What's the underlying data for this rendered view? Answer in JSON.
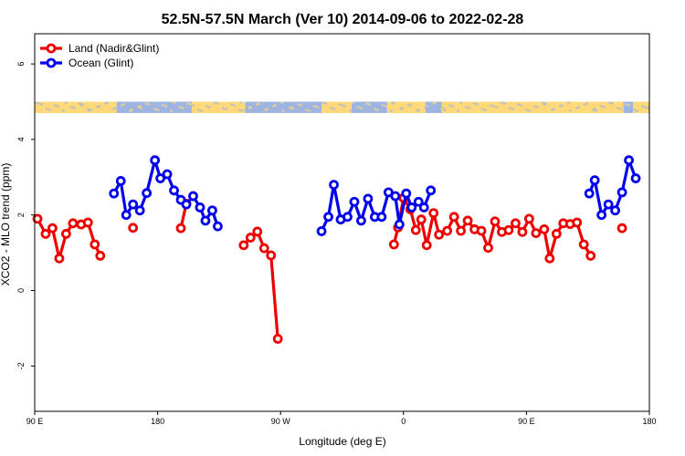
{
  "chart_data": {
    "type": "line",
    "title": "52.5N-57.5N March (Ver 10)   2014-09-06 to 2022-02-28",
    "xlabel": "Longitude (deg E)",
    "ylabel": "XCO2 - MLO trend (ppm)",
    "xlim": [
      90,
      540
    ],
    "ylim": [
      -3.2,
      6.8
    ],
    "x_ticks": [
      {
        "value": 90,
        "label": "90 E"
      },
      {
        "value": 180,
        "label": "180"
      },
      {
        "value": 270,
        "label": "90 W"
      },
      {
        "value": 360,
        "label": "0"
      },
      {
        "value": 450,
        "label": "90 E"
      },
      {
        "value": 540,
        "label": "180"
      }
    ],
    "y_ticks": [
      {
        "value": -2,
        "label": "-2"
      },
      {
        "value": 0,
        "label": "0"
      },
      {
        "value": 2,
        "label": "2"
      },
      {
        "value": 4,
        "label": "4"
      },
      {
        "value": 6,
        "label": "6"
      }
    ],
    "land_mask_band": {
      "y_top": 5.0,
      "y_bottom": 4.7,
      "land_color": "#ffd979",
      "ocean_color": "#9db5e0"
    },
    "legend_position": "top-left",
    "series": [
      {
        "name": "Land (Nadir&Glint)",
        "color": "#ee0000",
        "segments": [
          [
            [
              92,
              1.9
            ],
            [
              98,
              1.5
            ],
            [
              103,
              1.65
            ],
            [
              108,
              0.85
            ],
            [
              113,
              1.5
            ],
            [
              118,
              1.78
            ],
            [
              124,
              1.75
            ],
            [
              129,
              1.8
            ],
            [
              134,
              1.22
            ],
            [
              138,
              0.92
            ]
          ],
          [
            [
              162,
              1.66
            ]
          ],
          [
            [
              197,
              1.65
            ],
            [
              201,
              2.3
            ]
          ],
          [
            [
              243,
              1.2
            ],
            [
              248,
              1.4
            ],
            [
              253,
              1.56
            ],
            [
              258,
              1.12
            ],
            [
              263,
              0.93
            ],
            [
              268,
              -1.28
            ]
          ],
          [
            [
              353,
              1.22
            ],
            [
              356,
              1.67
            ],
            [
              360,
              2.45
            ],
            [
              365,
              2.15
            ],
            [
              369,
              1.6
            ],
            [
              373,
              1.88
            ],
            [
              377,
              1.2
            ],
            [
              382,
              2.05
            ],
            [
              386,
              1.48
            ],
            [
              392,
              1.58
            ],
            [
              397,
              1.95
            ],
            [
              402,
              1.58
            ],
            [
              407,
              1.85
            ],
            [
              412,
              1.62
            ],
            [
              417,
              1.58
            ],
            [
              422,
              1.13
            ],
            [
              427,
              1.83
            ],
            [
              432,
              1.55
            ],
            [
              437,
              1.6
            ],
            [
              442,
              1.78
            ],
            [
              447,
              1.55
            ],
            [
              452,
              1.9
            ],
            [
              457,
              1.52
            ],
            [
              463,
              1.62
            ],
            [
              467,
              0.85
            ],
            [
              472,
              1.5
            ],
            [
              477,
              1.78
            ],
            [
              482,
              1.76
            ],
            [
              487,
              1.8
            ],
            [
              492,
              1.22
            ],
            [
              497,
              0.92
            ]
          ],
          [
            [
              520,
              1.65
            ]
          ]
        ]
      },
      {
        "name": "Ocean (Glint)",
        "color": "#0000ee",
        "segments": [
          [
            [
              148,
              2.57
            ],
            [
              153,
              2.9
            ],
            [
              157,
              2.0
            ],
            [
              162,
              2.28
            ],
            [
              167,
              2.12
            ],
            [
              172,
              2.58
            ],
            [
              178,
              3.45
            ],
            [
              182,
              2.97
            ],
            [
              187,
              3.08
            ],
            [
              192,
              2.65
            ],
            [
              197,
              2.4
            ],
            [
              201,
              2.28
            ],
            [
              206,
              2.5
            ],
            [
              211,
              2.2
            ],
            [
              215,
              1.85
            ],
            [
              220,
              2.12
            ],
            [
              224,
              1.7
            ]
          ],
          [
            [
              300,
              1.57
            ],
            [
              305,
              1.95
            ],
            [
              309,
              2.8
            ],
            [
              314,
              1.88
            ],
            [
              319,
              1.95
            ],
            [
              324,
              2.35
            ],
            [
              329,
              1.85
            ],
            [
              334,
              2.43
            ],
            [
              339,
              1.95
            ],
            [
              344,
              1.95
            ],
            [
              349,
              2.6
            ],
            [
              354,
              2.5
            ],
            [
              357,
              1.75
            ],
            [
              362,
              2.57
            ],
            [
              366,
              2.2
            ],
            [
              371,
              2.35
            ],
            [
              375,
              2.2
            ],
            [
              380,
              2.65
            ]
          ]
        ]
      },
      {
        "name": "Ocean (Glint)",
        "color": "#0000ee",
        "segments": [
          [
            [
              496,
              2.57
            ],
            [
              500,
              2.92
            ],
            [
              505,
              2.0
            ],
            [
              510,
              2.28
            ],
            [
              515,
              2.12
            ],
            [
              520,
              2.6
            ],
            [
              525,
              3.45
            ],
            [
              530,
              2.97
            ]
          ]
        ]
      }
    ]
  }
}
